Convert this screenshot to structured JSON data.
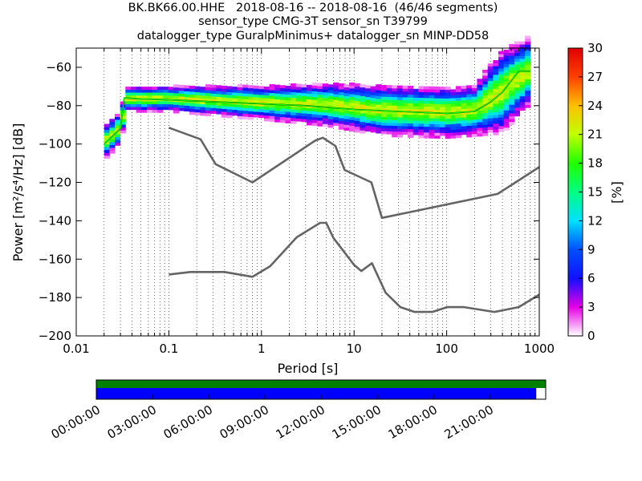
{
  "title": {
    "line1": "BK.BK66.00.HHE   2018-08-16 -- 2018-08-16  (46/46 segments)",
    "line2": "sensor_type CMG-3T sensor_sn T39799",
    "line3": "datalogger_type GuralpMinimus+ datalogger_sn MINP-DD58"
  },
  "chart_data": {
    "type": "heatmap",
    "xlabel": "Period [s]",
    "ylabel": "Power [m²/s⁴/Hz] [dB]",
    "xscale": "log",
    "xlim": [
      0.01,
      1000
    ],
    "ylim": [
      -200,
      -50
    ],
    "x_tick_labels": [
      "0.01",
      "0.1",
      "1",
      "10",
      "100",
      "1000"
    ],
    "y_ticks": [
      -200,
      -180,
      -160,
      -140,
      -120,
      -100,
      -80,
      -60
    ],
    "y_tick_labels": [
      "−200",
      "−180",
      "−160",
      "−140",
      "−120",
      "−100",
      "−80",
      "−60"
    ],
    "grid": "dotted vertical",
    "colorbar": {
      "label": "[%]",
      "range": [
        0,
        30
      ],
      "ticks": [
        "0",
        "3",
        "6",
        "9",
        "12",
        "15",
        "18",
        "21",
        "24",
        "27",
        "30"
      ]
    },
    "series": [
      {
        "kind": "noise-model-upper",
        "color": "#646464",
        "points": [
          [
            0.1,
            -91.5
          ],
          [
            0.22,
            -97.5
          ],
          [
            0.32,
            -110.5
          ],
          [
            0.8,
            -120
          ],
          [
            3.8,
            -98.2
          ],
          [
            4.6,
            -96.7
          ],
          [
            6.3,
            -101
          ],
          [
            7.9,
            -113.5
          ],
          [
            15.4,
            -120
          ],
          [
            20,
            -138.5
          ],
          [
            354.8,
            -126
          ],
          [
            1000,
            -112
          ]
        ]
      },
      {
        "kind": "noise-model-lower",
        "color": "#646464",
        "points": [
          [
            0.1,
            -168
          ],
          [
            0.17,
            -166.7
          ],
          [
            0.4,
            -166.7
          ],
          [
            0.8,
            -169.2
          ],
          [
            1.24,
            -163.7
          ],
          [
            2.4,
            -148.6
          ],
          [
            4.3,
            -141.1
          ],
          [
            5,
            -141.1
          ],
          [
            6,
            -149
          ],
          [
            10,
            -163
          ],
          [
            12,
            -166.2
          ],
          [
            15.6,
            -162.1
          ],
          [
            21.9,
            -177.5
          ],
          [
            31.6,
            -185
          ],
          [
            45,
            -187.5
          ],
          [
            70,
            -187.5
          ],
          [
            101,
            -185
          ],
          [
            154,
            -185
          ],
          [
            328,
            -187.5
          ],
          [
            600,
            -185
          ],
          [
            1000,
            -178.5
          ]
        ]
      },
      {
        "kind": "mean-line",
        "color": "#000000",
        "points": [
          [
            0.02,
            -100
          ],
          [
            0.03,
            -92
          ],
          [
            0.033,
            -76
          ],
          [
            0.05,
            -76.5
          ],
          [
            0.1,
            -77
          ],
          [
            1,
            -79
          ],
          [
            3,
            -80
          ],
          [
            10,
            -82
          ],
          [
            30,
            -83
          ],
          [
            100,
            -84
          ],
          [
            200,
            -83
          ],
          [
            300,
            -78
          ],
          [
            400,
            -73
          ],
          [
            600,
            -62
          ],
          [
            800,
            -62
          ]
        ]
      },
      {
        "kind": "mode-line",
        "color": "#00ff00",
        "points": [
          [
            0.02,
            -100
          ],
          [
            0.03,
            -92
          ],
          [
            0.033,
            -76
          ],
          [
            0.05,
            -76.5
          ],
          [
            0.1,
            -77
          ],
          [
            1,
            -79
          ],
          [
            3,
            -80
          ],
          [
            10,
            -82
          ],
          [
            30,
            -83
          ],
          [
            100,
            -84
          ],
          [
            200,
            -83
          ],
          [
            300,
            -78
          ],
          [
            400,
            -73
          ],
          [
            600,
            -62
          ],
          [
            800,
            -62
          ]
        ]
      }
    ],
    "density_spread": {
      "color_percent": [
        10,
        20
      ],
      "points": [
        [
          0.02,
          -100,
          4
        ],
        [
          0.03,
          -92,
          4
        ],
        [
          0.035,
          -77,
          3
        ],
        [
          0.1,
          -77,
          3
        ],
        [
          1,
          -79,
          4
        ],
        [
          5,
          -80,
          5
        ],
        [
          20,
          -83,
          6
        ],
        [
          100,
          -84,
          6
        ],
        [
          200,
          -83,
          6
        ],
        [
          400,
          -73,
          10
        ],
        [
          800,
          -62,
          8
        ]
      ]
    },
    "time_axis": {
      "tick_labels": [
        "00:00:00",
        "03:00:00",
        "06:00:00",
        "09:00:00",
        "12:00:00",
        "15:00:00",
        "18:00:00",
        "21:00:00"
      ],
      "coverage_color": "#008000",
      "data_color": "#0000ff",
      "coverage_fraction": 1.0,
      "data_fraction": 0.979
    }
  }
}
